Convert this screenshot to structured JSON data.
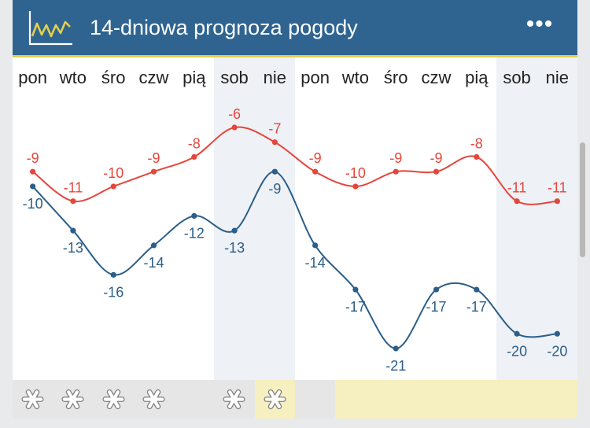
{
  "header": {
    "title": "14-dniowa prognoza pogody",
    "menu_label": "•••",
    "colors": {
      "background": "#2f6491",
      "accent_line": "#e4cf4c"
    },
    "icon": "chart-line-icon"
  },
  "chart_data": {
    "type": "line",
    "categories": [
      "pon",
      "wto",
      "śro",
      "czw",
      "pią",
      "sob",
      "nie",
      "pon",
      "wto",
      "śro",
      "czw",
      "pią",
      "sob",
      "nie"
    ],
    "weekend_days": [
      5,
      6,
      12,
      13
    ],
    "series": [
      {
        "values": [
          -9,
          -11,
          -10,
          -9,
          -8,
          -6,
          -7,
          -9,
          -10,
          -9,
          -9,
          -8,
          -11,
          -11
        ],
        "color": "#e5463c"
      },
      {
        "values": [
          -10,
          -13,
          -16,
          -14,
          -12,
          -13,
          -9,
          -14,
          -17,
          -21,
          -17,
          -17,
          -20,
          -20
        ],
        "color": "#2b5e88"
      }
    ]
  },
  "precipitation": {
    "days": [
      {
        "icon": "snowflake-icon",
        "background": "#e6e6e6"
      },
      {
        "icon": "snowflake-icon",
        "background": "#e6e6e6"
      },
      {
        "icon": "snowflake-icon",
        "background": "#e6e6e6"
      },
      {
        "icon": "snowflake-icon",
        "background": "#e6e6e6"
      },
      {
        "icon": "",
        "background": "#e6e6e6"
      },
      {
        "icon": "snowflake-icon",
        "background": "#e6e6e6"
      },
      {
        "icon": "snowflake-icon",
        "background": "#f6efbf"
      },
      {
        "icon": "",
        "background": "#e6e6e6"
      },
      {
        "icon": "",
        "background": "#f6efbf"
      },
      {
        "icon": "",
        "background": "#f6efbf"
      },
      {
        "icon": "",
        "background": "#f6efbf"
      },
      {
        "icon": "",
        "background": "#f6efbf"
      },
      {
        "icon": "",
        "background": "#f6efbf"
      },
      {
        "icon": "",
        "background": "#f6efbf"
      }
    ]
  }
}
